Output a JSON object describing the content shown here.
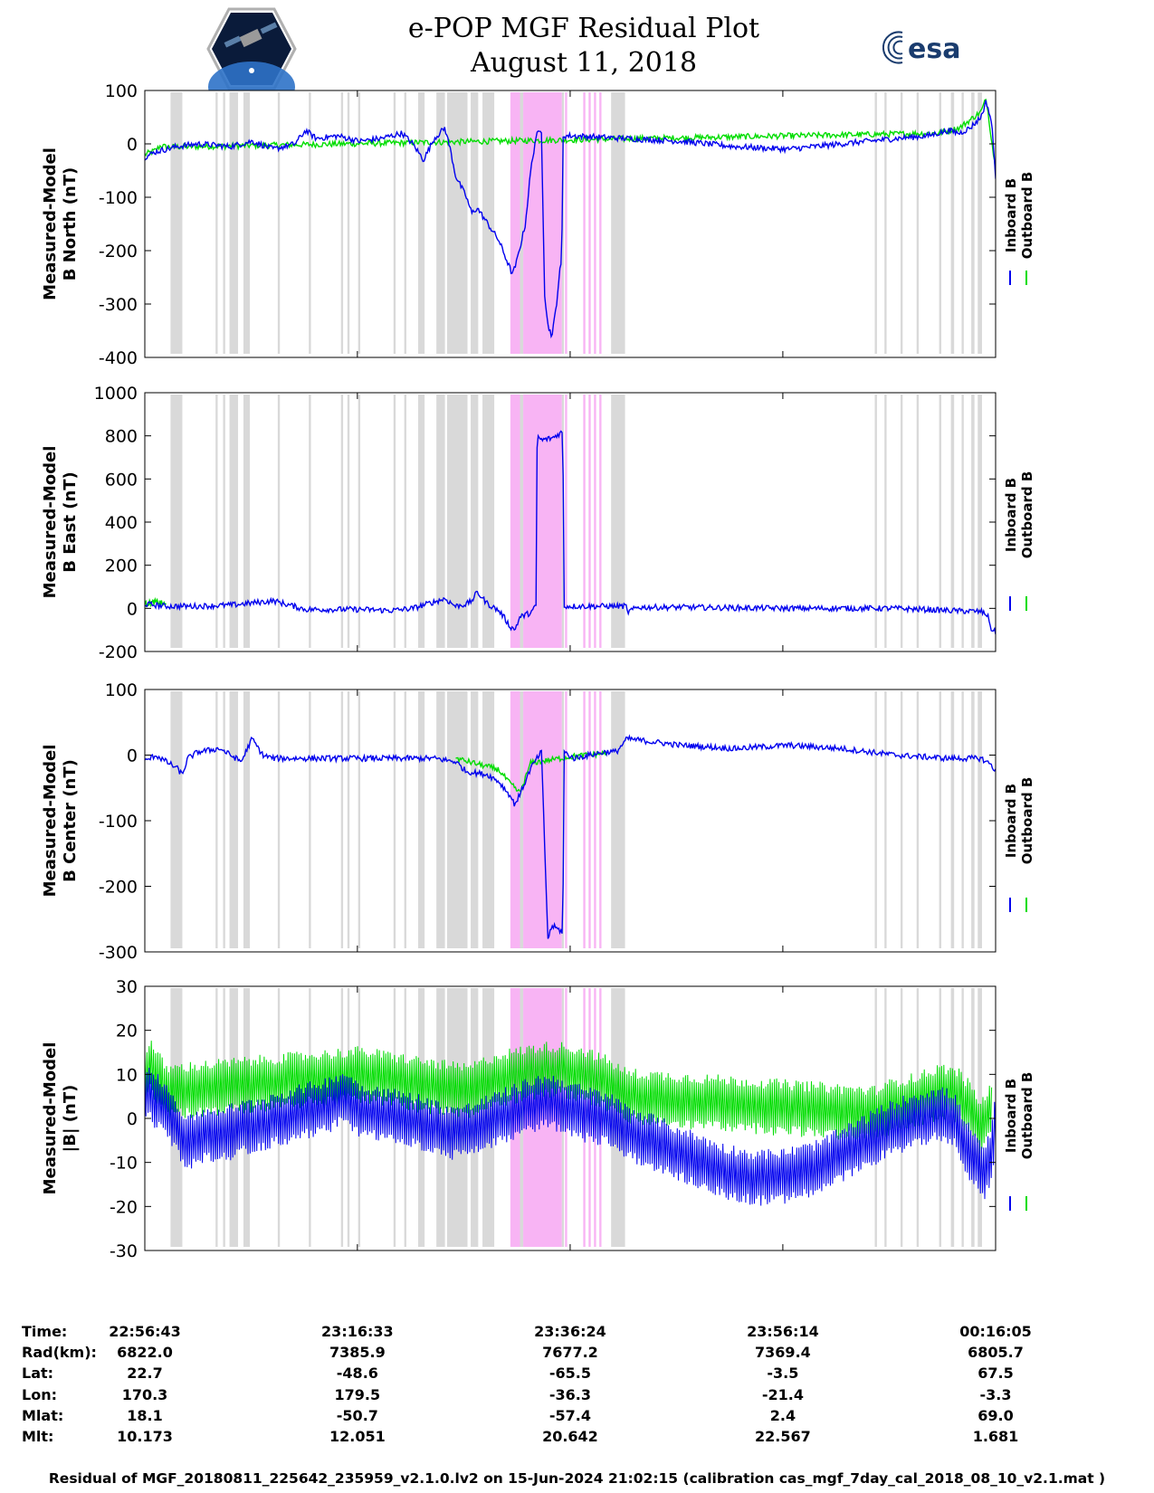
{
  "title": "e-POP MGF Residual Plot",
  "subtitle": "August 11, 2018",
  "logos": {
    "left": "cassiope-mission-logo",
    "right_text": "esa"
  },
  "colors": {
    "inboard": "#0000ee",
    "outboard": "#00dd00",
    "gap": "#d9d9d9",
    "highlight": "#f8b4f4"
  },
  "legend": {
    "inboard": "Inboard B",
    "outboard": "Outboard B"
  },
  "x_time_range_min": [
    0,
    79.37
  ],
  "gray_bands_min": [
    [
      2.4,
      3.5
    ],
    [
      6.6,
      6.8
    ],
    [
      7.3,
      7.5
    ],
    [
      7.9,
      8.7
    ],
    [
      9.2,
      9.8
    ],
    [
      12.4,
      12.6
    ],
    [
      15.3,
      15.5
    ],
    [
      18.3,
      18.5
    ],
    [
      18.9,
      19.1
    ],
    [
      19.9,
      20.1
    ],
    [
      23.2,
      23.4
    ],
    [
      24.2,
      24.4
    ],
    [
      25.5,
      26.1
    ],
    [
      27.2,
      28.0
    ],
    [
      28.2,
      30.1
    ],
    [
      30.4,
      31.1
    ],
    [
      31.5,
      32.6
    ],
    [
      35.0,
      35.3
    ],
    [
      38.9,
      39.1
    ],
    [
      43.5,
      44.8
    ],
    [
      68.1,
      68.3
    ],
    [
      69.0,
      69.2
    ],
    [
      70.5,
      70.7
    ],
    [
      72.0,
      72.2
    ],
    [
      74.1,
      74.3
    ],
    [
      75.2,
      75.5
    ],
    [
      76.2,
      76.4
    ],
    [
      77.1,
      77.4
    ],
    [
      77.7,
      78.1
    ]
  ],
  "pink_bands_min": [
    [
      34.1,
      35.0
    ],
    [
      35.3,
      38.9
    ],
    [
      39.2,
      39.4
    ],
    [
      40.9,
      41.1
    ],
    [
      41.4,
      41.6
    ],
    [
      41.9,
      42.1
    ],
    [
      42.4,
      42.6
    ]
  ],
  "info_table": {
    "labels": [
      "Time:",
      "Rad(km):",
      "Lat:",
      "Lon:",
      "Mlat:",
      "Mlt:"
    ],
    "columns": [
      [
        "22:56:43",
        "6822.0",
        "22.7",
        "170.3",
        "18.1",
        "10.173"
      ],
      [
        "23:16:33",
        "7385.9",
        "-48.6",
        "179.5",
        "-50.7",
        "12.051"
      ],
      [
        "23:36:24",
        "7677.2",
        "-65.5",
        "-36.3",
        "-57.4",
        "20.642"
      ],
      [
        "23:56:14",
        "7369.4",
        "-3.5",
        "-21.4",
        "2.4",
        "22.567"
      ],
      [
        "00:16:05",
        "6805.7",
        "67.5",
        "-3.3",
        "69.0",
        "1.681"
      ]
    ]
  },
  "footer": "Residual of MGF_20180811_225642_235959_v2.1.0.lv2 on 15-Jun-2024 21:02:15 (calibration cas_mgf_7day_cal_2018_08_10_v2.1.mat )",
  "chart_data": [
    {
      "type": "line",
      "ylabel_line1": "Measured-Model",
      "ylabel_line2": "B North (nT)",
      "ylim": [
        -400,
        100
      ],
      "yticks": [
        100,
        0,
        -100,
        -200,
        -300,
        -400
      ],
      "xticks_min": [
        0,
        19.83,
        39.68,
        59.52,
        79.37
      ],
      "series": [
        {
          "name": "Inboard B",
          "x": [
            0,
            1,
            2,
            3,
            5,
            8,
            10,
            12,
            14,
            15,
            16,
            18,
            20,
            22,
            24,
            25,
            26,
            27,
            28,
            28.5,
            29,
            30,
            30.5,
            31,
            32,
            33,
            34,
            34.3,
            34.7,
            35.5,
            36,
            36.5,
            37,
            37.3,
            37.6,
            38,
            38.4,
            38.7,
            38.9,
            39,
            40,
            45,
            50,
            55,
            60,
            65,
            70,
            73,
            75,
            76,
            77,
            78,
            78.5,
            79,
            79.37
          ],
          "y": [
            -25,
            -15,
            -10,
            -5,
            0,
            -5,
            5,
            -10,
            0,
            25,
            10,
            15,
            5,
            10,
            20,
            0,
            -30,
            10,
            30,
            -10,
            -60,
            -100,
            -130,
            -120,
            -150,
            -180,
            -230,
            -245,
            -220,
            -150,
            -50,
            15,
            25,
            -280,
            -340,
            -360,
            -300,
            -240,
            -220,
            15,
            15,
            10,
            5,
            -5,
            -10,
            0,
            10,
            15,
            25,
            20,
            30,
            50,
            80,
            40,
            -60
          ]
        },
        {
          "name": "Outboard B",
          "x": [
            0,
            1,
            1.5,
            2,
            74,
            76,
            77,
            78,
            78.5,
            79.37
          ],
          "y": [
            -20,
            -12,
            -3,
            -6,
            20,
            30,
            45,
            60,
            85,
            -50
          ]
        }
      ]
    },
    {
      "type": "line",
      "ylabel_line1": "Measured-Model",
      "ylabel_line2": "B East (nT)",
      "ylim": [
        -200,
        1000
      ],
      "yticks": [
        1000,
        800,
        600,
        400,
        200,
        0,
        -200
      ],
      "xticks_min": [
        0,
        19.83,
        39.68,
        59.52,
        79.37
      ],
      "series": [
        {
          "name": "Inboard B",
          "x": [
            0,
            2,
            5,
            8,
            10,
            12,
            15,
            20,
            23,
            25,
            27,
            28,
            29,
            30,
            30.5,
            31,
            32,
            33,
            33.5,
            34,
            34.5,
            35,
            36,
            36.5,
            36.6,
            37,
            38,
            39,
            39.1,
            40,
            45,
            44.5,
            46,
            50,
            60,
            70,
            75,
            78,
            78.6,
            79,
            79.37
          ],
          "y": [
            20,
            10,
            10,
            15,
            25,
            35,
            -5,
            -5,
            -10,
            0,
            30,
            45,
            10,
            20,
            35,
            75,
            20,
            -10,
            -40,
            -80,
            -100,
            -40,
            -20,
            10,
            800,
            780,
            790,
            820,
            10,
            10,
            10,
            -30,
            5,
            5,
            0,
            0,
            -10,
            -15,
            -30,
            -100,
            -110
          ]
        },
        {
          "name": "Outboard B",
          "x": [
            0,
            1,
            1.5,
            2
          ],
          "y": [
            20,
            30,
            25,
            15
          ]
        }
      ]
    },
    {
      "type": "line",
      "ylabel_line1": "Measured-Model",
      "ylabel_line2": "B Center (nT)",
      "ylim": [
        -300,
        100
      ],
      "yticks": [
        100,
        0,
        -100,
        -200,
        -300
      ],
      "xticks_min": [
        0,
        19.83,
        39.68,
        59.52,
        79.37
      ],
      "series": [
        {
          "name": "Inboard B",
          "x": [
            0,
            1,
            3,
            3.5,
            4,
            5,
            7,
            8,
            9,
            10,
            11,
            12,
            14,
            15,
            17,
            20,
            23,
            27,
            29,
            30,
            32,
            33,
            34,
            34.5,
            35,
            36,
            37,
            37.6,
            37.8,
            38,
            39,
            39.1,
            40,
            43,
            44,
            45,
            50,
            55,
            60,
            65,
            70,
            75,
            78,
            79,
            79.37
          ],
          "y": [
            -10,
            0,
            -20,
            -30,
            -5,
            5,
            10,
            0,
            -10,
            25,
            0,
            -5,
            -5,
            -5,
            -5,
            -5,
            -5,
            -5,
            -10,
            -25,
            -30,
            -40,
            -60,
            -75,
            -60,
            -20,
            5,
            -280,
            -270,
            -260,
            -270,
            5,
            -5,
            5,
            5,
            25,
            15,
            10,
            15,
            10,
            0,
            -5,
            -5,
            -15,
            -25
          ]
        },
        {
          "name": "Outboard B",
          "x": [
            29,
            33,
            34,
            35,
            36,
            40,
            43
          ],
          "y": [
            -5,
            -22,
            -42,
            -58,
            -12,
            -2,
            3
          ]
        }
      ]
    },
    {
      "type": "line",
      "ylabel_line1": "Measured-Model",
      "ylabel_line2": "|B| (nT)",
      "ylim": [
        -30,
        30
      ],
      "yticks": [
        30,
        20,
        10,
        0,
        -10,
        -20,
        -30
      ],
      "xticks_min": [
        0,
        19.83,
        39.68,
        59.52,
        79.37
      ],
      "series": [
        {
          "name": "Inboard B",
          "x": [
            0,
            1,
            2,
            3,
            4,
            5,
            8,
            11,
            14,
            17,
            18.7,
            20,
            22,
            24,
            26,
            28,
            30,
            31,
            32,
            34,
            36,
            37.5,
            39,
            41,
            43,
            45,
            48,
            51,
            54,
            57,
            60,
            63,
            66,
            69,
            72,
            74,
            75.5,
            76.5,
            77.5,
            78.4,
            79,
            79.37
          ],
          "y": [
            7,
            4,
            2,
            -2,
            -6,
            -4,
            -3,
            -1,
            1,
            3,
            5,
            2,
            1,
            0,
            -1,
            -3,
            -3,
            -2,
            -1,
            1,
            3,
            4,
            3,
            1,
            0,
            -3,
            -6,
            -9,
            -12,
            -13.5,
            -13,
            -11,
            -7,
            -3,
            0,
            1,
            0,
            -6,
            -10,
            -12,
            -8,
            0
          ]
        },
        {
          "name": "Outboard B",
          "x": [
            0,
            0.5,
            1,
            1.5,
            2,
            20,
            25,
            30,
            31,
            33,
            35,
            37,
            39,
            41,
            43,
            45,
            68,
            70,
            72,
            74,
            75,
            76,
            77,
            78,
            79
          ],
          "y": [
            10,
            12,
            10,
            8,
            6,
            10,
            8,
            6,
            7,
            9,
            10,
            11,
            11,
            10,
            8,
            5,
            1,
            3,
            4,
            6,
            6,
            5,
            2,
            -2,
            2
          ]
        }
      ]
    }
  ]
}
